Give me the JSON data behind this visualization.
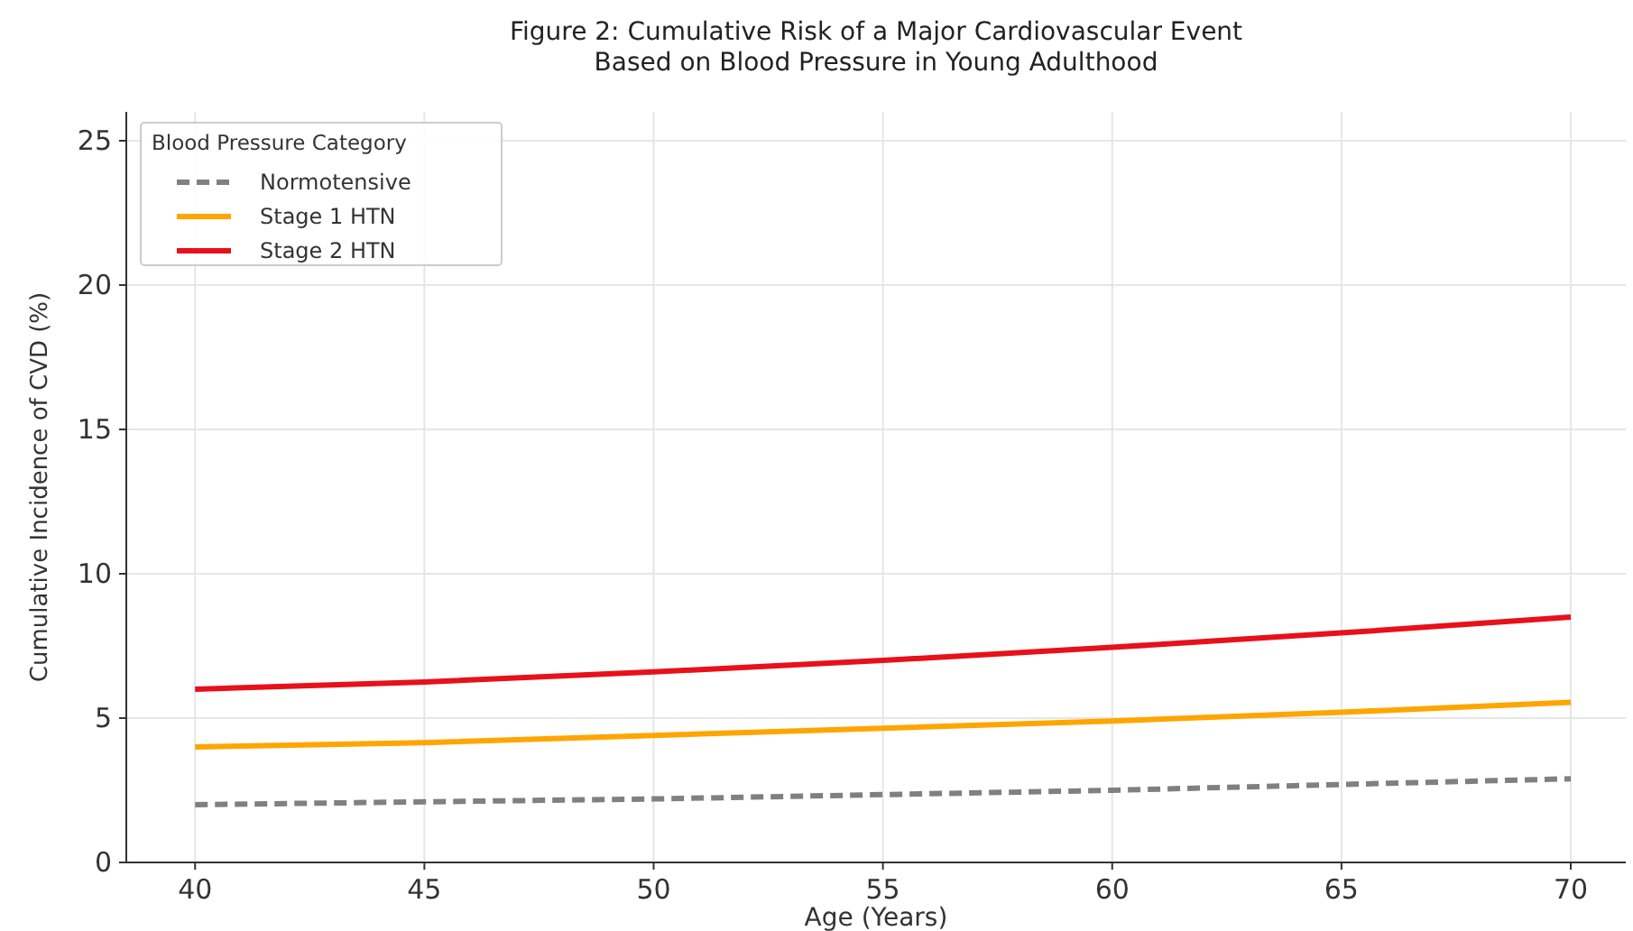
{
  "chart_data": {
    "type": "line",
    "title": "Figure 2: Cumulative Risk of a Major Cardiovascular Event\nBased on Blood Pressure in Young Adulthood",
    "xlabel": "Age (Years)",
    "ylabel": "Cumulative Incidence of CVD (%)",
    "legend_title": "Blood Pressure Category",
    "x": [
      40,
      45,
      50,
      55,
      60,
      65,
      70
    ],
    "series": [
      {
        "name": "Normotensive",
        "color": "#808080",
        "line_style": "dashed",
        "values": [
          2.0,
          2.1,
          2.2,
          2.35,
          2.5,
          2.7,
          2.9
        ]
      },
      {
        "name": "Stage 1 HTN",
        "color": "#ffa500",
        "line_style": "solid",
        "values": [
          4.0,
          4.15,
          4.4,
          4.65,
          4.9,
          5.2,
          5.55
        ]
      },
      {
        "name": "Stage 2 HTN",
        "color": "#e8101a",
        "line_style": "solid",
        "values": [
          6.0,
          6.25,
          6.6,
          7.0,
          7.45,
          7.95,
          8.5
        ]
      }
    ],
    "xlim": [
      38.5,
      71.2
    ],
    "ylim": [
      0,
      26
    ],
    "xticks": [
      40,
      45,
      50,
      55,
      60,
      65,
      70
    ],
    "yticks": [
      0,
      5,
      10,
      15,
      20,
      25
    ],
    "grid": true,
    "legend": "top left"
  }
}
